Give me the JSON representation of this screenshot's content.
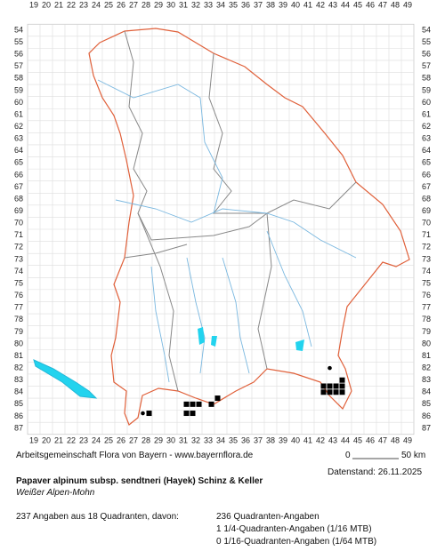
{
  "columns": [
    19,
    20,
    21,
    22,
    23,
    24,
    25,
    26,
    27,
    28,
    29,
    30,
    31,
    32,
    33,
    34,
    35,
    36,
    37,
    38,
    39,
    40,
    41,
    42,
    43,
    44,
    45,
    46,
    47,
    48,
    49
  ],
  "rows": [
    54,
    55,
    56,
    57,
    58,
    59,
    60,
    61,
    62,
    63,
    64,
    65,
    66,
    67,
    68,
    69,
    70,
    71,
    72,
    73,
    74,
    75,
    76,
    77,
    78,
    79,
    80,
    81,
    82,
    83,
    84,
    85,
    86,
    87
  ],
  "records": [
    {
      "col": 27.75,
      "row": 85.75,
      "kind": "dot"
    },
    {
      "col": 28.25,
      "row": 85.75,
      "kind": "square"
    },
    {
      "col": 31.25,
      "row": 85.0,
      "kind": "square"
    },
    {
      "col": 31.75,
      "row": 85.0,
      "kind": "square"
    },
    {
      "col": 32.25,
      "row": 85.0,
      "kind": "square"
    },
    {
      "col": 31.25,
      "row": 85.75,
      "kind": "square"
    },
    {
      "col": 31.75,
      "row": 85.75,
      "kind": "square"
    },
    {
      "col": 33.25,
      "row": 85.0,
      "kind": "square"
    },
    {
      "col": 33.75,
      "row": 84.5,
      "kind": "square"
    },
    {
      "col": 42.75,
      "row": 82.0,
      "kind": "dot"
    },
    {
      "col": 42.25,
      "row": 83.5,
      "kind": "square"
    },
    {
      "col": 42.75,
      "row": 83.5,
      "kind": "square"
    },
    {
      "col": 43.25,
      "row": 83.5,
      "kind": "square"
    },
    {
      "col": 43.75,
      "row": 83.0,
      "kind": "square"
    },
    {
      "col": 43.75,
      "row": 83.5,
      "kind": "square"
    },
    {
      "col": 42.25,
      "row": 84.0,
      "kind": "square"
    },
    {
      "col": 42.75,
      "row": 84.0,
      "kind": "square"
    },
    {
      "col": 43.25,
      "row": 84.0,
      "kind": "square"
    },
    {
      "col": 43.75,
      "row": 84.0,
      "kind": "square"
    }
  ],
  "credit": "Arbeitsgemeinschaft Flora von Bayern - www.bayernflora.de",
  "scale_start": "0",
  "scale_end": "50 km",
  "date": "Datenstand: 26.11.2025",
  "title": "Papaver alpinum subsp. sendtneri (Hayek) Schinz & Keller",
  "common_name": "Weißer Alpen-Mohn",
  "summary": "237 Angaben aus 18 Quadranten, davon:",
  "breakdown": [
    "236 Quadranten-Angaben",
    "1 1/4-Quadranten-Angaben (1/16 MTB)",
    "0 1/16-Quadranten-Angaben (1/64 MTB)"
  ]
}
